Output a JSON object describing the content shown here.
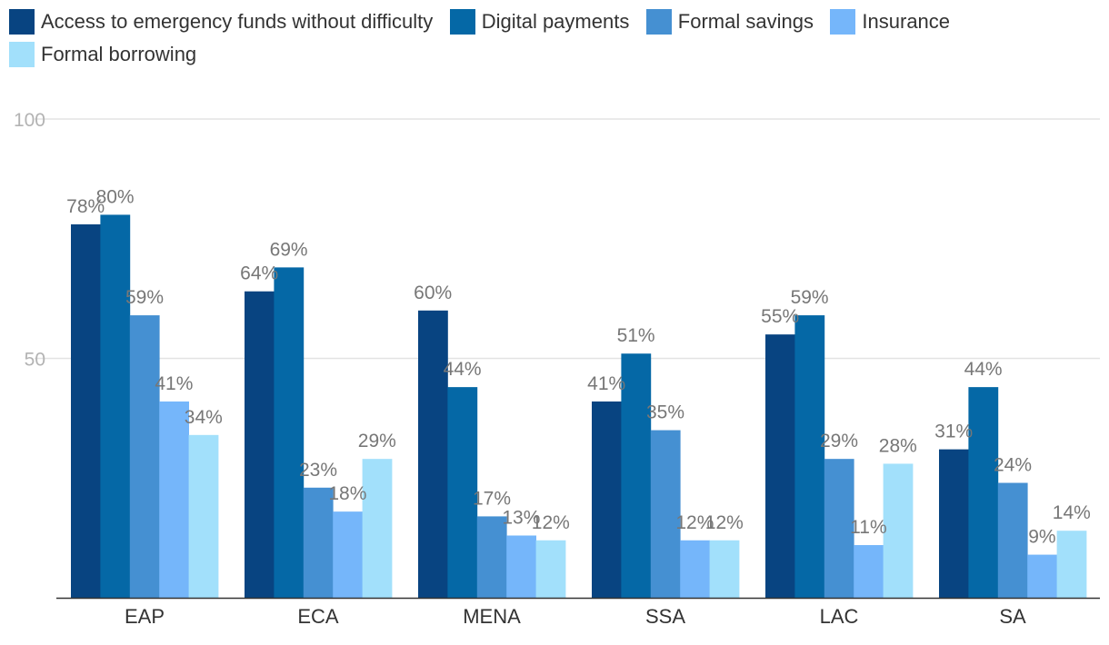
{
  "chart_data": {
    "type": "bar",
    "title": "",
    "xlabel": "",
    "ylabel": "",
    "ylim": [
      0,
      100
    ],
    "yticks": [
      "50",
      "100"
    ],
    "grid": true,
    "legend_position": "top",
    "categories": [
      "EAP",
      "ECA",
      "MENA",
      "SSA",
      "LAC",
      "SA"
    ],
    "series": [
      {
        "name": "Access to emergency funds without difficulty",
        "color": "#084481",
        "values": [
          78,
          64,
          60,
          41,
          55,
          31
        ],
        "labels": [
          "78%",
          "64%",
          "60%",
          "41%",
          "55%",
          "31%"
        ]
      },
      {
        "name": "Digital payments",
        "color": "#0568a6",
        "values": [
          80,
          69,
          44,
          51,
          59,
          44
        ],
        "labels": [
          "80%",
          "69%",
          "44%",
          "51%",
          "59%",
          "44%"
        ]
      },
      {
        "name": "Formal savings",
        "color": "#4590d2",
        "values": [
          59,
          23,
          17,
          35,
          29,
          24
        ],
        "labels": [
          "59%",
          "23%",
          "17%",
          "35%",
          "29%",
          "24%"
        ]
      },
      {
        "name": "Insurance",
        "color": "#75b6fa",
        "values": [
          41,
          18,
          13,
          12,
          11,
          9
        ],
        "labels": [
          "41%",
          "18%",
          "13%",
          "12%",
          "11%",
          "9%"
        ]
      },
      {
        "name": "Formal borrowing",
        "color": "#a2e0fb",
        "values": [
          34,
          29,
          12,
          12,
          28,
          14
        ],
        "labels": [
          "34%",
          "29%",
          "12%",
          "12%",
          "28%",
          "14%"
        ]
      }
    ]
  }
}
